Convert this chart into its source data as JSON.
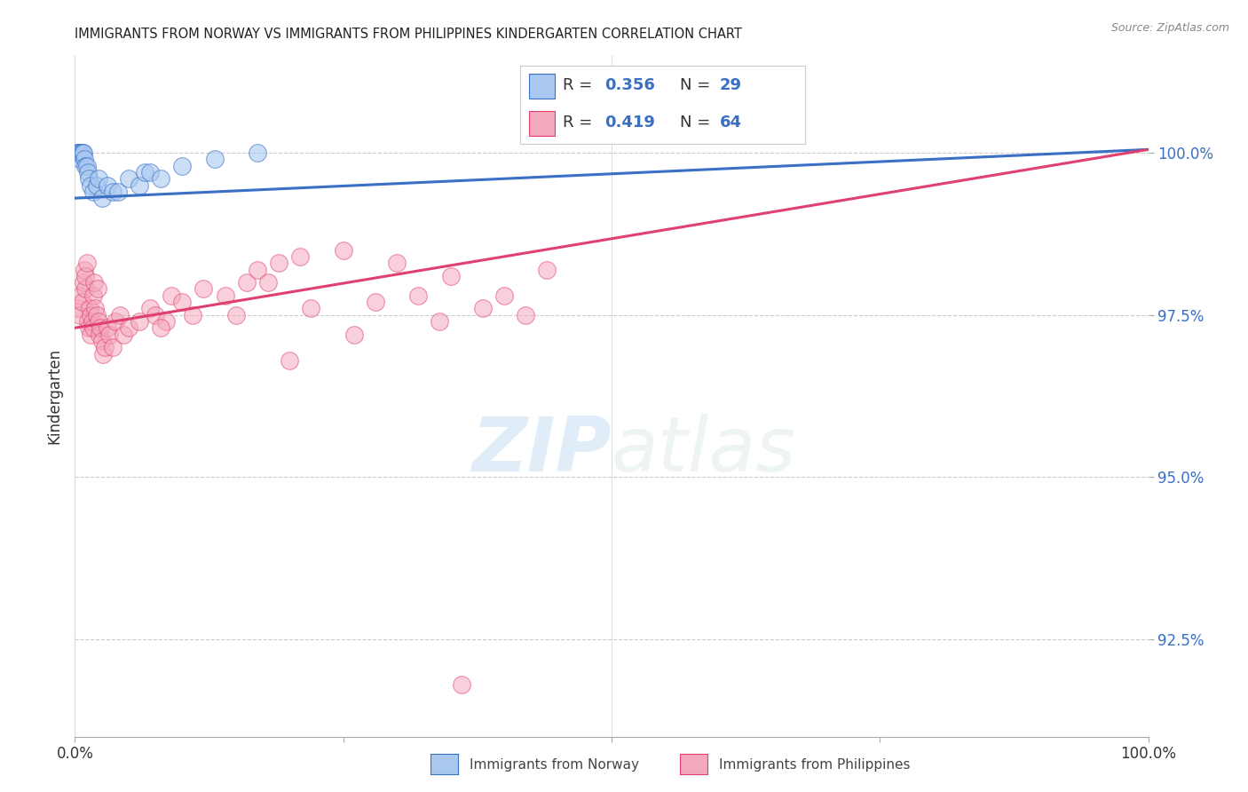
{
  "title": "IMMIGRANTS FROM NORWAY VS IMMIGRANTS FROM PHILIPPINES KINDERGARTEN CORRELATION CHART",
  "source": "Source: ZipAtlas.com",
  "ylabel": "Kindergarten",
  "ytick_labels": [
    "92.5%",
    "95.0%",
    "97.5%",
    "100.0%"
  ],
  "ytick_values": [
    92.5,
    95.0,
    97.5,
    100.0
  ],
  "xlim": [
    0,
    100
  ],
  "ylim": [
    91.0,
    101.5
  ],
  "legend_r_norway": "0.356",
  "legend_n_norway": "29",
  "legend_r_philippines": "0.419",
  "legend_n_philippines": "64",
  "color_norway": "#a8c8f0",
  "color_philippines": "#f4a8bc",
  "trendline_color_norway": "#3a6fc4",
  "trendline_color_philippines": "#e04070",
  "watermark_zip": "ZIP",
  "watermark_atlas": "atlas",
  "norway_x": [
    0.2,
    0.3,
    0.4,
    0.5,
    0.5,
    0.6,
    0.7,
    0.8,
    0.9,
    1.0,
    1.1,
    1.2,
    1.3,
    1.5,
    1.7,
    2.0,
    2.2,
    2.5,
    3.0,
    3.5,
    4.0,
    5.0,
    6.0,
    6.5,
    7.0,
    8.0,
    10.0,
    13.0,
    17.0
  ],
  "norway_y": [
    100.0,
    100.0,
    100.0,
    100.0,
    99.9,
    100.0,
    100.0,
    100.0,
    99.9,
    99.8,
    99.8,
    99.7,
    99.6,
    99.5,
    99.4,
    99.5,
    99.6,
    99.3,
    99.5,
    99.4,
    99.4,
    99.6,
    99.5,
    99.7,
    99.7,
    99.6,
    99.8,
    99.9,
    100.0
  ],
  "philippines_x": [
    0.3,
    0.5,
    0.5,
    0.7,
    0.8,
    0.9,
    1.0,
    1.0,
    1.1,
    1.2,
    1.3,
    1.4,
    1.5,
    1.5,
    1.6,
    1.7,
    1.7,
    1.8,
    1.9,
    2.0,
    2.1,
    2.2,
    2.3,
    2.4,
    2.5,
    2.6,
    2.8,
    3.0,
    3.2,
    3.5,
    3.8,
    4.2,
    4.5,
    5.0,
    6.0,
    7.0,
    7.5,
    8.5,
    9.0,
    10.0,
    11.0,
    12.0,
    14.0,
    16.0,
    17.0,
    19.0,
    21.0,
    25.0,
    30.0,
    35.0,
    32.0,
    28.0,
    22.0,
    18.0,
    15.0,
    8.0,
    20.0,
    26.0,
    34.0,
    38.0,
    40.0,
    42.0,
    44.0,
    36.0
  ],
  "philippines_y": [
    97.6,
    97.8,
    97.5,
    97.7,
    98.0,
    98.2,
    97.9,
    98.1,
    98.3,
    97.4,
    97.3,
    97.6,
    97.5,
    97.2,
    97.4,
    97.3,
    97.8,
    98.0,
    97.6,
    97.5,
    97.9,
    97.4,
    97.2,
    97.3,
    97.1,
    96.9,
    97.0,
    97.3,
    97.2,
    97.0,
    97.4,
    97.5,
    97.2,
    97.3,
    97.4,
    97.6,
    97.5,
    97.4,
    97.8,
    97.7,
    97.5,
    97.9,
    97.8,
    98.0,
    98.2,
    98.3,
    98.4,
    98.5,
    98.3,
    98.1,
    97.8,
    97.7,
    97.6,
    98.0,
    97.5,
    97.3,
    96.8,
    97.2,
    97.4,
    97.6,
    97.8,
    97.5,
    98.2,
    91.8
  ]
}
